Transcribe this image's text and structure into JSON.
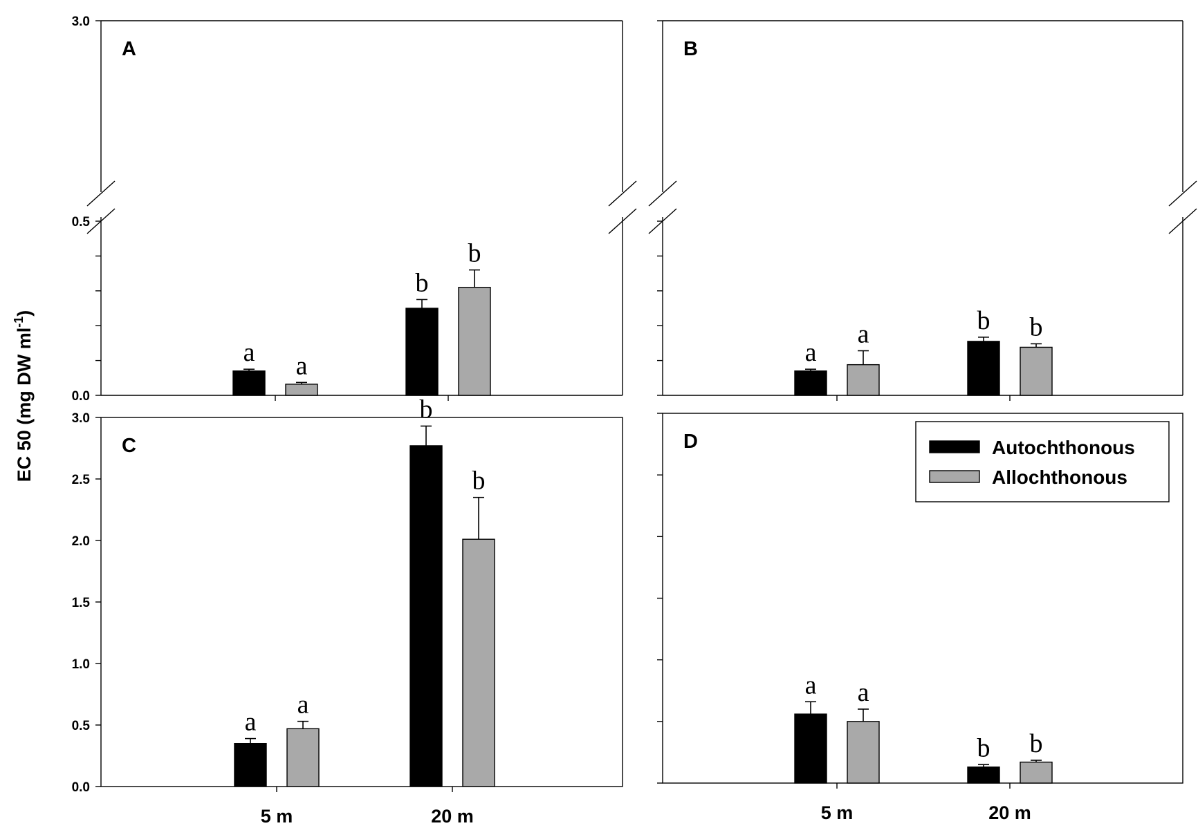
{
  "figure": {
    "ylabel": "EC 50 (mg DW ml",
    "ylabel_sup": "-1",
    "ylabel_close": ")"
  },
  "legend": {
    "items": [
      {
        "name": "Autochthonous",
        "color": "#000000"
      },
      {
        "name": "Allochthonous",
        "color": "#a9a9a9"
      }
    ]
  },
  "chart_data": [
    {
      "panel": "A",
      "type": "bar",
      "categories": [
        "5 m",
        "20 m"
      ],
      "series": [
        {
          "name": "Autochthonous",
          "color": "#000000",
          "values": [
            0.07,
            0.25
          ],
          "errors": [
            0.005,
            0.025
          ],
          "letters": [
            "a",
            "b"
          ]
        },
        {
          "name": "Allochthonous",
          "color": "#a9a9a9",
          "values": [
            0.032,
            0.31
          ],
          "errors": [
            0.005,
            0.05
          ],
          "letters": [
            "a",
            "b"
          ]
        }
      ],
      "ylim": [
        0,
        3.0
      ],
      "axis_break": {
        "from": 0.5,
        "to": 3.0
      },
      "yticks_labeled": [
        "3.0",
        "0.5",
        "0.0"
      ],
      "show_category_labels": false
    },
    {
      "panel": "B",
      "type": "bar",
      "categories": [
        "5 m",
        "20 m"
      ],
      "series": [
        {
          "name": "Autochthonous",
          "color": "#000000",
          "values": [
            0.07,
            0.155
          ],
          "errors": [
            0.005,
            0.012
          ],
          "letters": [
            "a",
            "b"
          ]
        },
        {
          "name": "Allochthonous",
          "color": "#a9a9a9",
          "values": [
            0.088,
            0.138
          ],
          "errors": [
            0.04,
            0.01
          ],
          "letters": [
            "a",
            "b"
          ]
        }
      ],
      "ylim": [
        0,
        3.0
      ],
      "axis_break": {
        "from": 0.5,
        "to": 3.0
      },
      "yticks_labeled": [],
      "show_category_labels": false
    },
    {
      "panel": "C",
      "type": "bar",
      "categories": [
        "5 m",
        "20 m"
      ],
      "series": [
        {
          "name": "Autochthonous",
          "color": "#000000",
          "values": [
            0.35,
            2.77
          ],
          "errors": [
            0.04,
            0.16
          ],
          "letters": [
            "a",
            "b"
          ]
        },
        {
          "name": "Allochthonous",
          "color": "#a9a9a9",
          "values": [
            0.47,
            2.01
          ],
          "errors": [
            0.06,
            0.34
          ],
          "letters": [
            "a",
            "b"
          ]
        }
      ],
      "ylim": [
        0,
        3.0
      ],
      "yticks_labeled": [
        "0.0",
        "0.5",
        "1.0",
        "1.5",
        "2.0",
        "2.5",
        "3.0"
      ],
      "show_category_labels": true
    },
    {
      "panel": "D",
      "type": "bar",
      "categories": [
        "5 m",
        "20 m"
      ],
      "series": [
        {
          "name": "Autochthonous",
          "color": "#000000",
          "values": [
            0.56,
            0.13
          ],
          "errors": [
            0.1,
            0.02
          ],
          "letters": [
            "a",
            "b"
          ]
        },
        {
          "name": "Allochthonous",
          "color": "#a9a9a9",
          "values": [
            0.5,
            0.17
          ],
          "errors": [
            0.1,
            0.015
          ],
          "letters": [
            "a",
            "b"
          ]
        }
      ],
      "ylim": [
        0,
        3.0
      ],
      "yticks_labeled": [],
      "show_category_labels": true,
      "legend_placement": "top-right"
    }
  ]
}
